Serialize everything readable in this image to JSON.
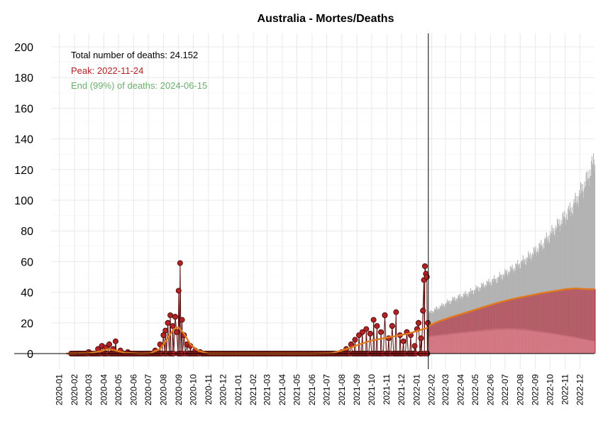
{
  "chart_data": {
    "type": "line",
    "title": "Australia - Mortes/Deaths",
    "xlabel": "",
    "ylabel": "",
    "ylim": [
      0,
      200
    ],
    "xlim": [
      "2019-12-15",
      "2022-12-31"
    ],
    "y_ticks": [
      0,
      20,
      40,
      60,
      80,
      100,
      120,
      140,
      160,
      180,
      200
    ],
    "x_tick_labels": [
      "2020-01",
      "2020-02",
      "2020-03",
      "2020-04",
      "2020-05",
      "2020-06",
      "2020-07",
      "2020-08",
      "2020-09",
      "2020-10",
      "2020-11",
      "2020-12",
      "2021-01",
      "2021-02",
      "2021-03",
      "2021-04",
      "2021-05",
      "2021-06",
      "2021-07",
      "2021-08",
      "2021-09",
      "2021-10",
      "2021-11",
      "2021-12",
      "2022-01",
      "2022-02",
      "2022-03",
      "2022-04",
      "2022-05",
      "2022-06",
      "2022-07",
      "2022-08",
      "2022-09",
      "2022-10",
      "2022-11",
      "2022-12"
    ],
    "grid": true,
    "vertical_line_date": "2022-01-25",
    "annotations": {
      "total": "Total number of deaths: 24.152",
      "peak": "Peak: 2022-11-24",
      "end": "End (99%) of deaths: 2024-06-15"
    },
    "series": [
      {
        "kind": "observed_points",
        "dates": [
          "2020-02-10",
          "2020-03-01",
          "2020-03-20",
          "2020-03-28",
          "2020-04-05",
          "2020-04-12",
          "2020-04-20",
          "2020-04-25",
          "2020-05-05",
          "2020-05-20",
          "2020-07-15",
          "2020-07-25",
          "2020-08-01",
          "2020-08-05",
          "2020-08-10",
          "2020-08-15",
          "2020-08-20",
          "2020-08-25",
          "2020-08-28",
          "2020-09-01",
          "2020-09-04",
          "2020-09-08",
          "2020-09-12",
          "2020-09-18",
          "2020-09-25",
          "2020-10-05",
          "2020-10-15",
          "2021-08-01",
          "2021-08-10",
          "2021-08-20",
          "2021-08-28",
          "2021-09-05",
          "2021-09-12",
          "2021-09-20",
          "2021-09-28",
          "2021-10-05",
          "2021-10-12",
          "2021-10-20",
          "2021-10-28",
          "2021-11-05",
          "2021-11-12",
          "2021-11-20",
          "2021-11-28",
          "2021-12-05",
          "2021-12-12",
          "2021-12-20",
          "2021-12-28",
          "2022-01-02",
          "2022-01-05",
          "2022-01-10",
          "2022-01-14",
          "2022-01-16",
          "2022-01-18",
          "2022-01-20",
          "2022-01-22",
          "2022-01-24"
        ],
        "values": [
          0,
          1,
          3,
          5,
          4,
          6,
          3,
          8,
          2,
          1,
          2,
          6,
          12,
          15,
          20,
          25,
          18,
          24,
          14,
          41,
          59,
          22,
          12,
          6,
          5,
          2,
          1,
          1,
          3,
          6,
          9,
          12,
          14,
          16,
          13,
          22,
          18,
          14,
          25,
          10,
          18,
          27,
          12,
          8,
          14,
          12,
          5,
          16,
          20,
          10,
          28,
          48,
          57,
          52,
          50,
          20
        ]
      },
      {
        "kind": "fitted_curve",
        "dates": [
          "2020-01-15",
          "2020-03-01",
          "2020-03-25",
          "2020-04-10",
          "2020-04-25",
          "2020-05-15",
          "2020-06-15",
          "2020-07-05",
          "2020-07-25",
          "2020-08-10",
          "2020-08-22",
          "2020-09-01",
          "2020-09-12",
          "2020-09-25",
          "2020-10-10",
          "2020-11-01",
          "2021-06-01",
          "2021-07-10",
          "2021-08-01",
          "2021-08-20",
          "2021-09-10",
          "2021-10-01",
          "2021-10-25",
          "2021-11-20",
          "2021-12-15",
          "2022-01-05",
          "2022-01-25"
        ],
        "values": [
          0,
          0.3,
          1.5,
          3,
          2,
          0.5,
          0,
          0.2,
          3,
          10,
          16,
          17,
          13,
          6,
          2,
          0,
          0,
          0.2,
          2,
          4,
          6.5,
          8.5,
          10,
          11.5,
          13,
          15,
          17
        ]
      },
      {
        "kind": "forecast_median",
        "dates": [
          "2022-01-25",
          "2022-02-15",
          "2022-03-15",
          "2022-04-15",
          "2022-05-15",
          "2022-06-15",
          "2022-07-15",
          "2022-08-15",
          "2022-09-15",
          "2022-10-15",
          "2022-11-01",
          "2022-11-24",
          "2022-12-15",
          "2022-12-31"
        ],
        "values": [
          18,
          21,
          24,
          27,
          30,
          33,
          35.5,
          37.5,
          39.5,
          41,
          42,
          42.5,
          42,
          42
        ]
      },
      {
        "kind": "forecast_lower",
        "dates": [
          "2022-01-25",
          "2022-02-15",
          "2022-03-15",
          "2022-04-15",
          "2022-05-15",
          "2022-06-15",
          "2022-07-15",
          "2022-08-15",
          "2022-09-15",
          "2022-10-15",
          "2022-11-15",
          "2022-12-15",
          "2022-12-31"
        ],
        "values": [
          11,
          12,
          13,
          14,
          15,
          16,
          16,
          15.5,
          14,
          12.5,
          11,
          9,
          8
        ]
      },
      {
        "kind": "forecast_upper",
        "dates": [
          "2022-01-25",
          "2022-02-15",
          "2022-03-15",
          "2022-04-15",
          "2022-05-15",
          "2022-06-15",
          "2022-07-15",
          "2022-08-15",
          "2022-09-15",
          "2022-10-15",
          "2022-11-15",
          "2022-12-15",
          "2022-12-31"
        ],
        "values": [
          26,
          30,
          35,
          39,
          44,
          49,
          55,
          62,
          71,
          83,
          95,
          113,
          127
        ]
      }
    ]
  },
  "colors": {
    "point_fill": "#b22222",
    "point_stroke": "#3b0a0a",
    "observed_line": "#5a0d0d",
    "fitted_line": "#e07a1f",
    "forecast_line": "#e07a1f",
    "band_outer": "#b3b3b3",
    "band_inner": "#b5535f",
    "band_lower": "#d97a86",
    "grid": "#e8e8e8",
    "peak_text": "#b22222",
    "end_text": "#6aaf6a"
  }
}
